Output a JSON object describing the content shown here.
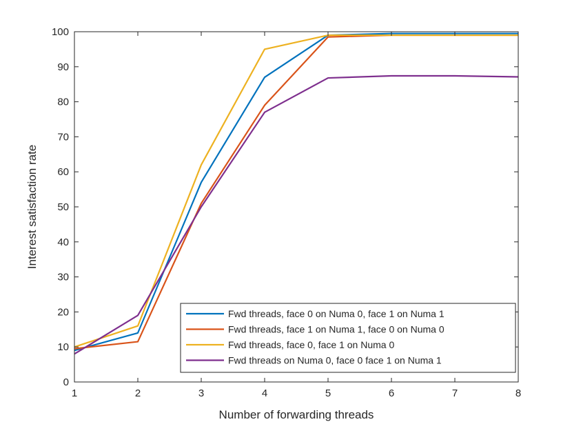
{
  "chart_data": {
    "type": "line",
    "title": "",
    "xlabel": "Number of forwarding threads",
    "ylabel": "Interest satisfaction rate",
    "x": [
      1,
      2,
      3,
      4,
      5,
      6,
      7,
      8
    ],
    "xlim": [
      1,
      8
    ],
    "ylim": [
      0,
      100
    ],
    "xticks": [
      1,
      2,
      3,
      4,
      5,
      6,
      7,
      8
    ],
    "yticks": [
      0,
      10,
      20,
      30,
      40,
      50,
      60,
      70,
      80,
      90,
      100
    ],
    "grid": false,
    "legend_position": "bottom-right",
    "series": [
      {
        "name": "Fwd threads, face 0 on Numa 0, face 1 on Numa 1",
        "color": "#0072BD",
        "values": [
          9,
          14,
          57,
          87,
          99,
          99.5,
          99.5,
          99.5
        ]
      },
      {
        "name": "Fwd threads, face 1 on Numa 1, face 0 on Numa 0",
        "color": "#D95319",
        "values": [
          9.5,
          11.5,
          51,
          79,
          98.5,
          99,
          99,
          99
        ]
      },
      {
        "name": "Fwd threads, face 0, face 1 on Numa 0",
        "color": "#EDB120",
        "values": [
          10,
          16,
          62,
          95,
          99,
          99,
          99,
          99
        ]
      },
      {
        "name": "Fwd threads on Numa 0, face 0 face 1 on Numa 1",
        "color": "#7E2F8E",
        "values": [
          8,
          19,
          50,
          77,
          86.8,
          87.4,
          87.4,
          87.1
        ]
      }
    ]
  }
}
